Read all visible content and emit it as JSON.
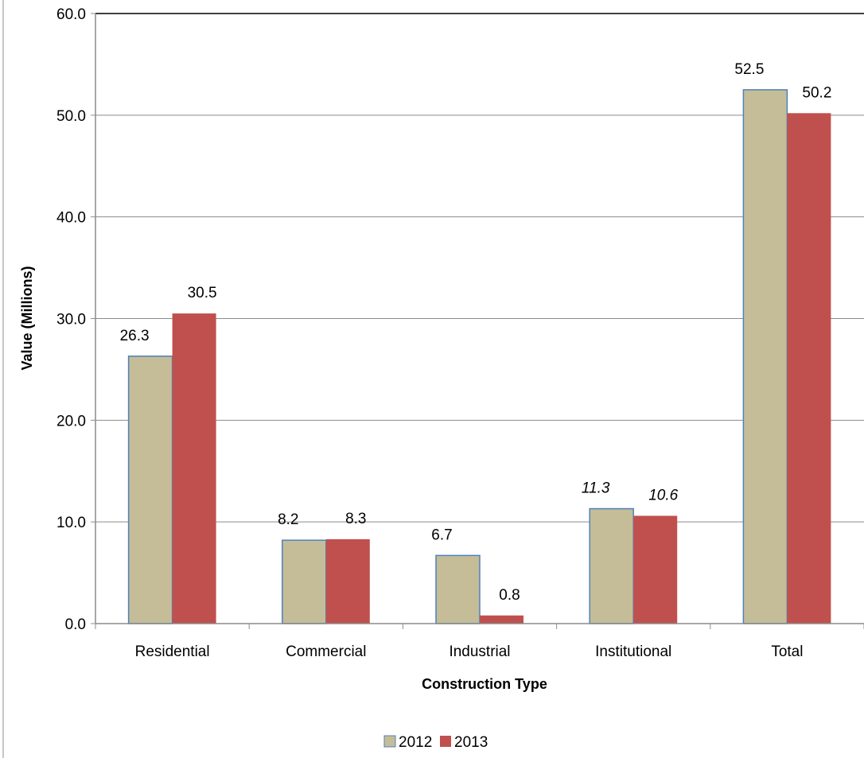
{
  "chart_data": {
    "type": "bar",
    "title": "",
    "xlabel": "Construction Type",
    "ylabel": "Value (Millions)",
    "ylim": [
      0,
      60
    ],
    "y_ticks": [
      "0.0",
      "10.0",
      "20.0",
      "30.0",
      "40.0",
      "50.0",
      "60.0"
    ],
    "grid": true,
    "legend_position": "bottom",
    "categories": [
      "Residential",
      "Commercial",
      "Industrial",
      "Institutional",
      "Total"
    ],
    "series": [
      {
        "name": "2012",
        "color": "#c4bd97",
        "values": [
          26.3,
          8.2,
          6.7,
          11.3,
          52.5
        ],
        "labels": [
          "26.3",
          "8.2",
          "6.7",
          "11.3",
          "52.5"
        ]
      },
      {
        "name": "2013",
        "color": "#c0504d",
        "values": [
          30.5,
          8.3,
          0.8,
          10.6,
          50.2
        ],
        "labels": [
          "30.5",
          "8.3",
          "0.8",
          "10.6",
          "50.2"
        ]
      }
    ],
    "italic_label_category": "Institutional"
  }
}
